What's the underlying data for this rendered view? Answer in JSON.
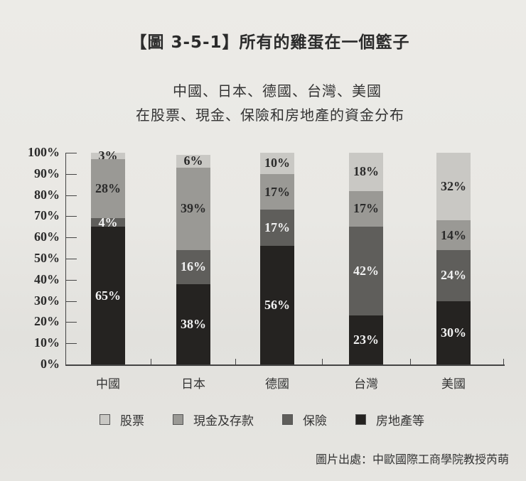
{
  "title": "【圖 3-5-1】所有的雞蛋在一個籃子",
  "subtitle_line1": "中國、日本、德國、台灣、美國",
  "subtitle_line2": "在股票、現金、保險和房地產的資金分布",
  "source": "圖片出處：中歐國際工商學院教授芮萌",
  "chart_data": {
    "type": "bar",
    "stacked": true,
    "title": "【圖 3-5-1】所有的雞蛋在一個籃子",
    "subtitle": "中國、日本、德國、台灣、美國 在股票、現金、保險和房地產的資金分布",
    "categories": [
      "中國",
      "日本",
      "德國",
      "台灣",
      "美國"
    ],
    "series": [
      {
        "name": "房地產等",
        "key": "realestate",
        "color": "#252321",
        "values": [
          65,
          38,
          56,
          23,
          30
        ],
        "labels": [
          "65%",
          "38%",
          "56%",
          "23%",
          "30%"
        ]
      },
      {
        "name": "保險",
        "key": "insurance",
        "color": "#5f5e5b",
        "values": [
          4,
          16,
          17,
          42,
          24
        ],
        "labels": [
          "4%",
          "16%",
          "17%",
          "42%",
          "24%"
        ]
      },
      {
        "name": "現金及存款",
        "key": "cash",
        "color": "#9a9995",
        "values": [
          28,
          39,
          17,
          17,
          14
        ],
        "labels": [
          "28%",
          "39%",
          "17%",
          "17%",
          "14%"
        ]
      },
      {
        "name": "股票",
        "key": "stocks",
        "color": "#c9c8c4",
        "values": [
          3,
          6,
          10,
          18,
          32
        ],
        "labels": [
          "3%",
          "6%",
          "10%",
          "18%",
          "32%"
        ]
      }
    ],
    "xlabel": "",
    "ylabel": "",
    "ylim": [
      0,
      100
    ],
    "yticks": [
      "0%",
      "10%",
      "20%",
      "30%",
      "40%",
      "50%",
      "60%",
      "70%",
      "80%",
      "90%",
      "100%"
    ],
    "legend_position": "bottom",
    "legend": [
      "股票",
      "現金及存款",
      "保險",
      "房地產等"
    ],
    "grid": false
  }
}
